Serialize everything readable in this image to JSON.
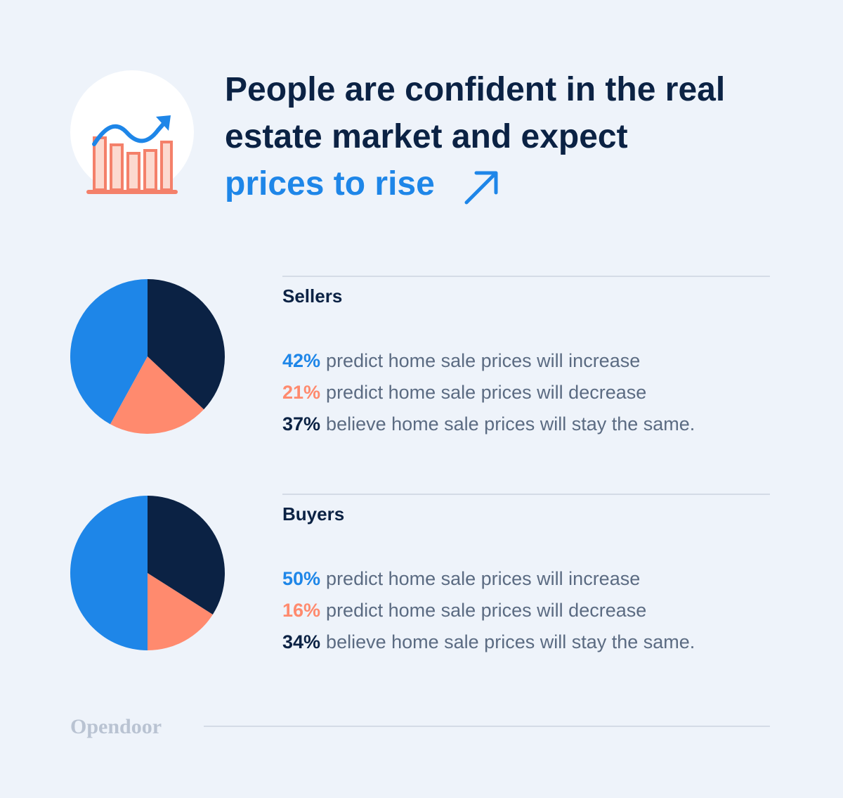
{
  "title": "People are confident in the real estate market and expect",
  "title_highlight": "prices to rise",
  "brand": "Opendoor",
  "chart_data": [
    {
      "type": "pie",
      "title": "Sellers",
      "categories": [
        "predict home sale prices will increase",
        "predict home sale prices will decrease",
        "believe home sale prices will stay the same."
      ],
      "values": [
        42,
        21,
        37
      ],
      "value_labels": [
        "42%",
        "21%",
        "37%"
      ],
      "colors": [
        "#1e86e8",
        "#ff8a6e",
        "#0b2244"
      ]
    },
    {
      "type": "pie",
      "title": "Buyers",
      "categories": [
        "predict home sale prices will increase",
        "predict home sale prices will decrease",
        "believe home sale prices will stay the same."
      ],
      "values": [
        50,
        16,
        34
      ],
      "value_labels": [
        "50%",
        "16%",
        "34%"
      ],
      "colors": [
        "#1e86e8",
        "#ff8a6e",
        "#0b2244"
      ]
    }
  ]
}
